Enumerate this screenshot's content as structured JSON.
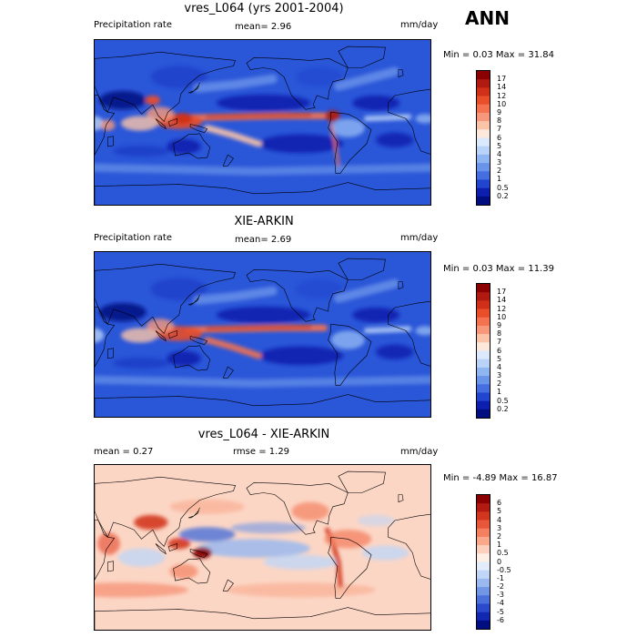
{
  "header": {
    "season": "ANN"
  },
  "panels": [
    {
      "title": "vres_L064 (yrs 2001-2004)",
      "left_label": "Precipitation rate",
      "mean_text": "mean=   2.96",
      "right_label": "mm/day",
      "minmax": "Min =   0.03 Max =  31.84",
      "colorbar": {
        "labels": [
          "17",
          "14",
          "12",
          "10",
          "9",
          "8",
          "7",
          "6",
          "5",
          "4",
          "3",
          "2",
          "1",
          "0.5",
          "0.2"
        ],
        "colors": [
          "#8b0000",
          "#b01a10",
          "#d03018",
          "#e84e2a",
          "#f47250",
          "#f8987a",
          "#fbc4a8",
          "#fde9dc",
          "#dce8fb",
          "#b8d2f8",
          "#90b6f2",
          "#6a94ea",
          "#456fe0",
          "#2245cf",
          "#0c1fae",
          "#000e80"
        ]
      },
      "map_type": "precip"
    },
    {
      "title": "XIE-ARKIN",
      "left_label": "Precipitation rate",
      "mean_text": "mean=   2.69",
      "right_label": "mm/day",
      "minmax": "Min =   0.03 Max =  11.39",
      "colorbar": {
        "labels": [
          "17",
          "14",
          "12",
          "10",
          "9",
          "8",
          "7",
          "6",
          "5",
          "4",
          "3",
          "2",
          "1",
          "0.5",
          "0.2"
        ],
        "colors": [
          "#8b0000",
          "#b01a10",
          "#d03018",
          "#e84e2a",
          "#f47250",
          "#f8987a",
          "#fbc4a8",
          "#fde9dc",
          "#dce8fb",
          "#b8d2f8",
          "#90b6f2",
          "#6a94ea",
          "#456fe0",
          "#2245cf",
          "#0c1fae",
          "#000e80"
        ]
      },
      "map_type": "precip_obs"
    },
    {
      "title": "vres_L064 - XIE-ARKIN",
      "left_label": "mean =   0.27",
      "mean_text": "rmse =   1.29",
      "right_label": "mm/day",
      "minmax": "Min =  -4.89 Max =  16.87",
      "colorbar": {
        "labels": [
          "6",
          "5",
          "4",
          "3",
          "2",
          "1",
          "0.5",
          "0",
          "-0.5",
          "-1",
          "-2",
          "-3",
          "-4",
          "-5",
          "-6"
        ],
        "colors": [
          "#8b0000",
          "#b31a12",
          "#d3361f",
          "#e8573a",
          "#f4805f",
          "#f9a98a",
          "#fcd0bc",
          "#fdeee6",
          "#e2ecfb",
          "#c0d6f6",
          "#9ab9ef",
          "#7196e6",
          "#4a70da",
          "#2a4acb",
          "#1328b0",
          "#000e80"
        ]
      },
      "map_type": "diff"
    }
  ]
}
